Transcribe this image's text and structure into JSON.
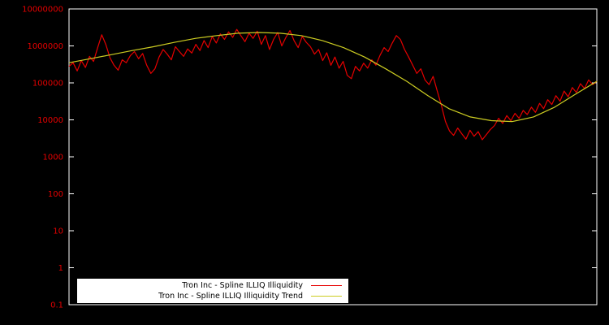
{
  "colors": {
    "background": "#000000",
    "axis": "#ffffff",
    "tick_label": "#e60000",
    "legend_bg": "#ffffff",
    "legend_text": "#000000",
    "series_red": "#e60000",
    "series_yellow": "#cdcd22"
  },
  "chart_data": {
    "type": "line",
    "title": "",
    "xlabel": "",
    "ylabel": "",
    "grid": false,
    "legend_position": "bottom-center-inside",
    "y_scale": "log10",
    "y_axis_min": 0.1,
    "y_axis_max": 10000000,
    "y_ticks": [
      0.1,
      1,
      10,
      100,
      1000,
      10000,
      100000,
      1000000,
      10000000
    ],
    "y_tick_labels": [
      "0.1",
      "1",
      "10",
      "100",
      "1000",
      "10000",
      "100000",
      "1000000",
      "10000000"
    ],
    "x_axis_labels_visible": false,
    "series": [
      {
        "name": "Tron Inc - Spline ILLIQ Illiquidity",
        "color": "#e60000",
        "values": [
          280000,
          350000,
          210000,
          400000,
          260000,
          520000,
          380000,
          900000,
          2000000,
          1100000,
          480000,
          300000,
          220000,
          420000,
          350000,
          550000,
          700000,
          450000,
          620000,
          300000,
          180000,
          240000,
          500000,
          800000,
          600000,
          420000,
          950000,
          700000,
          520000,
          830000,
          640000,
          1100000,
          750000,
          1400000,
          900000,
          1800000,
          1200000,
          2100000,
          1500000,
          2400000,
          1700000,
          2800000,
          1900000,
          1300000,
          2200000,
          1600000,
          2500000,
          1100000,
          1900000,
          800000,
          1500000,
          2300000,
          1000000,
          1700000,
          2600000,
          1400000,
          900000,
          1800000,
          1250000,
          950000,
          600000,
          800000,
          400000,
          650000,
          300000,
          500000,
          250000,
          380000,
          160000,
          130000,
          280000,
          210000,
          340000,
          250000,
          420000,
          300000,
          550000,
          900000,
          700000,
          1200000,
          1900000,
          1500000,
          800000,
          500000,
          300000,
          180000,
          240000,
          120000,
          90000,
          150000,
          60000,
          25000,
          9000,
          5000,
          3800,
          6000,
          4200,
          3000,
          5200,
          3600,
          4800,
          2900,
          4000,
          5500,
          7000,
          11000,
          8000,
          13000,
          9500,
          15000,
          11000,
          18000,
          14000,
          22000,
          16000,
          28000,
          20000,
          35000,
          26000,
          45000,
          32000,
          60000,
          42000,
          75000,
          55000,
          95000,
          70000,
          120000,
          90000,
          110000
        ]
      },
      {
        "name": "Tron Inc - Spline ILLIQ Illiquidity Trend",
        "color": "#cdcd22",
        "values": [
          350000,
          450000,
          580000,
          750000,
          950000,
          1250000,
          1600000,
          1900000,
          2200000,
          2300000,
          2200000,
          1900000,
          1400000,
          900000,
          500000,
          240000,
          110000,
          45000,
          20000,
          12000,
          9500,
          9000,
          12000,
          22000,
          50000,
          110000
        ]
      }
    ]
  }
}
